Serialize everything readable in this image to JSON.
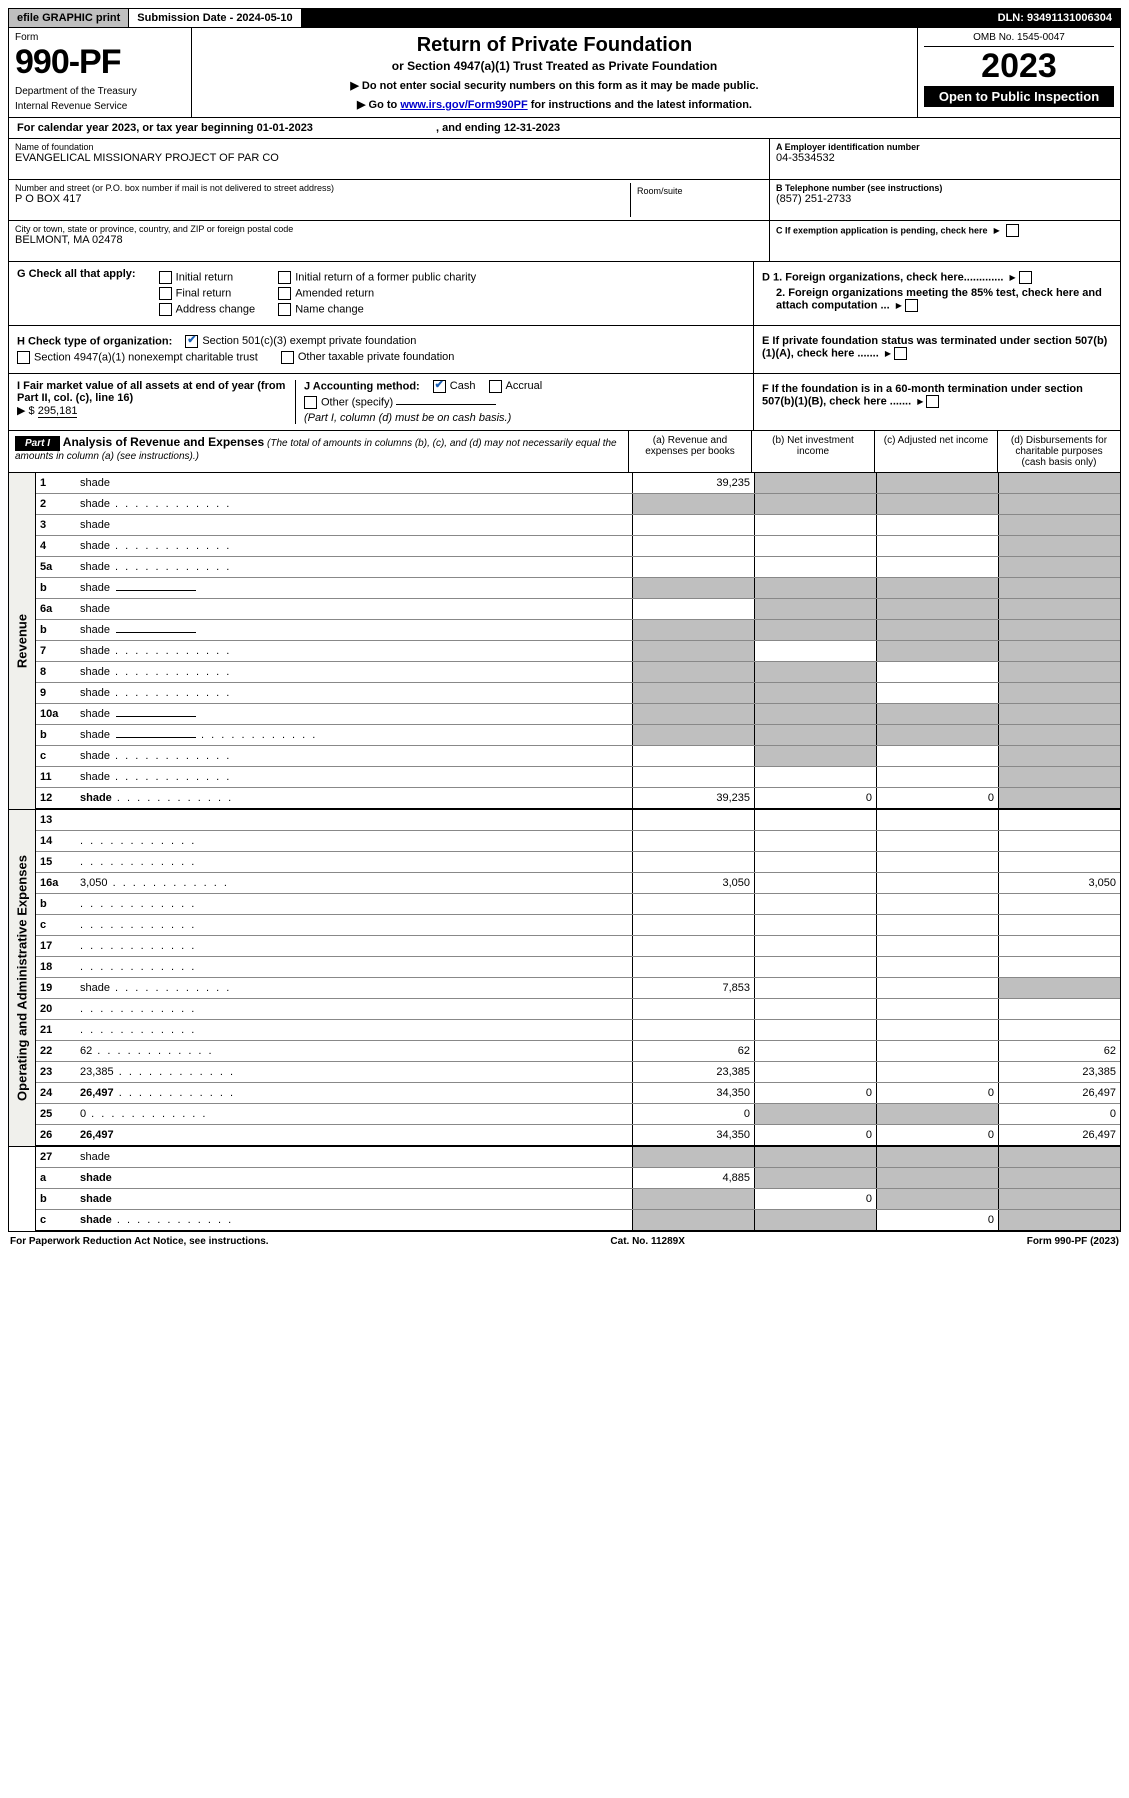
{
  "topbar": {
    "efile": "efile GRAPHIC print",
    "subdate": "Submission Date - 2024-05-10",
    "dln": "DLN: 93491131006304"
  },
  "form": {
    "formword": "Form",
    "number": "990-PF",
    "dept": "Department of the Treasury",
    "irs": "Internal Revenue Service",
    "title": "Return of Private Foundation",
    "subtitle": "or Section 4947(a)(1) Trust Treated as Private Foundation",
    "note1": "▶ Do not enter social security numbers on this form as it may be made public.",
    "note2_prefix": "▶ Go to ",
    "note2_link": "www.irs.gov/Form990PF",
    "note2_suffix": " for instructions and the latest information.",
    "omb": "OMB No. 1545-0047",
    "year": "2023",
    "open": "Open to Public Inspection"
  },
  "calyear": {
    "prefix": "For calendar year 2023, or tax year beginning ",
    "begin": "01-01-2023",
    "mid": " , and ending ",
    "end": "12-31-2023"
  },
  "id": {
    "name_lbl": "Name of foundation",
    "name": "EVANGELICAL MISSIONARY PROJECT OF PAR CO",
    "addr_lbl": "Number and street (or P.O. box number if mail is not delivered to street address)",
    "addr": "P O BOX 417",
    "room_lbl": "Room/suite",
    "room": "",
    "city_lbl": "City or town, state or province, country, and ZIP or foreign postal code",
    "city": "BELMONT, MA  02478",
    "ein_lbl": "A Employer identification number",
    "ein": "04-3534532",
    "tel_lbl": "B Telephone number (see instructions)",
    "tel": "(857) 251-2733",
    "c_lbl": "C If exemption application is pending, check here",
    "d1_lbl": "D 1. Foreign organizations, check here.............",
    "d2_lbl": "2. Foreign organizations meeting the 85% test, check here and attach computation ...",
    "e_lbl": "E If private foundation status was terminated under section 507(b)(1)(A), check here .......",
    "f_lbl": "F If the foundation is in a 60-month termination under section 507(b)(1)(B), check here ......."
  },
  "g": {
    "label": "G Check all that apply:",
    "opts": [
      "Initial return",
      "Final return",
      "Address change",
      "Initial return of a former public charity",
      "Amended return",
      "Name change"
    ]
  },
  "h": {
    "label": "H Check type of organization:",
    "o1": "Section 501(c)(3) exempt private foundation",
    "o2": "Section 4947(a)(1) nonexempt charitable trust",
    "o3": "Other taxable private foundation"
  },
  "i": {
    "label": "I Fair market value of all assets at end of year (from Part II, col. (c), line 16)",
    "val_prefix": "▶ $ ",
    "val": "295,181"
  },
  "j": {
    "label": "J Accounting method:",
    "cash": "Cash",
    "accrual": "Accrual",
    "other": "Other (specify)",
    "note": "(Part I, column (d) must be on cash basis.)"
  },
  "part1": {
    "label": "Part I",
    "title": "Analysis of Revenue and Expenses",
    "sub": " (The total of amounts in columns (b), (c), and (d) may not necessarily equal the amounts in column (a) (see instructions).)",
    "cols": [
      "(a) Revenue and expenses per books",
      "(b) Net investment income",
      "(c) Adjusted net income",
      "(d) Disbursements for charitable purposes (cash basis only)"
    ]
  },
  "sideRev": "Revenue",
  "sideOp": "Operating and Administrative Expenses",
  "rows": [
    {
      "n": "1",
      "d": "shade",
      "a": "39,235",
      "b": "shade",
      "c": "shade"
    },
    {
      "n": "2",
      "d": "shade",
      "a": "shade",
      "b": "shade",
      "c": "shade",
      "dots": true
    },
    {
      "n": "3",
      "d": "shade",
      "a": "",
      "b": "",
      "c": ""
    },
    {
      "n": "4",
      "d": "shade",
      "a": "",
      "b": "",
      "c": "",
      "dots": true
    },
    {
      "n": "5a",
      "d": "shade",
      "a": "",
      "b": "",
      "c": "",
      "dots": true
    },
    {
      "n": "b",
      "d": "shade",
      "a": "shade",
      "b": "shade",
      "c": "shade",
      "inner": true
    },
    {
      "n": "6a",
      "d": "shade",
      "a": "",
      "b": "shade",
      "c": "shade"
    },
    {
      "n": "b",
      "d": "shade",
      "a": "shade",
      "b": "shade",
      "c": "shade",
      "inner": true
    },
    {
      "n": "7",
      "d": "shade",
      "a": "shade",
      "b": "",
      "c": "shade",
      "dots": true
    },
    {
      "n": "8",
      "d": "shade",
      "a": "shade",
      "b": "shade",
      "c": "",
      "dots": true
    },
    {
      "n": "9",
      "d": "shade",
      "a": "shade",
      "b": "shade",
      "c": "",
      "dots": true
    },
    {
      "n": "10a",
      "d": "shade",
      "a": "shade",
      "b": "shade",
      "c": "shade",
      "inner": true
    },
    {
      "n": "b",
      "d": "shade",
      "a": "shade",
      "b": "shade",
      "c": "shade",
      "inner": true,
      "dots": true
    },
    {
      "n": "c",
      "d": "shade",
      "a": "",
      "b": "shade",
      "c": "",
      "dots": true
    },
    {
      "n": "11",
      "d": "shade",
      "a": "",
      "b": "",
      "c": "",
      "dots": true
    },
    {
      "n": "12",
      "d": "shade",
      "a": "39,235",
      "b": "0",
      "c": "0",
      "bold": true,
      "dots": true
    }
  ],
  "oprows": [
    {
      "n": "13",
      "d": "",
      "a": "",
      "b": "",
      "c": ""
    },
    {
      "n": "14",
      "d": "",
      "a": "",
      "b": "",
      "c": "",
      "dots": true
    },
    {
      "n": "15",
      "d": "",
      "a": "",
      "b": "",
      "c": "",
      "dots": true
    },
    {
      "n": "16a",
      "d": "3,050",
      "a": "3,050",
      "b": "",
      "c": "",
      "dots": true
    },
    {
      "n": "b",
      "d": "",
      "a": "",
      "b": "",
      "c": "",
      "dots": true
    },
    {
      "n": "c",
      "d": "",
      "a": "",
      "b": "",
      "c": "",
      "dots": true
    },
    {
      "n": "17",
      "d": "",
      "a": "",
      "b": "",
      "c": "",
      "dots": true
    },
    {
      "n": "18",
      "d": "",
      "a": "",
      "b": "",
      "c": "",
      "dots": true
    },
    {
      "n": "19",
      "d": "shade",
      "a": "7,853",
      "b": "",
      "c": "",
      "dots": true
    },
    {
      "n": "20",
      "d": "",
      "a": "",
      "b": "",
      "c": "",
      "dots": true
    },
    {
      "n": "21",
      "d": "",
      "a": "",
      "b": "",
      "c": "",
      "dots": true
    },
    {
      "n": "22",
      "d": "62",
      "a": "62",
      "b": "",
      "c": "",
      "dots": true
    },
    {
      "n": "23",
      "d": "23,385",
      "a": "23,385",
      "b": "",
      "c": "",
      "dots": true
    },
    {
      "n": "24",
      "d": "26,497",
      "a": "34,350",
      "b": "0",
      "c": "0",
      "bold": true,
      "dots": true
    },
    {
      "n": "25",
      "d": "0",
      "a": "0",
      "b": "shade",
      "c": "shade",
      "dots": true
    },
    {
      "n": "26",
      "d": "26,497",
      "a": "34,350",
      "b": "0",
      "c": "0",
      "bold": true
    }
  ],
  "bottomrows": [
    {
      "n": "27",
      "d": "shade",
      "a": "shade",
      "b": "shade",
      "c": "shade"
    },
    {
      "n": "a",
      "d": "shade",
      "a": "4,885",
      "b": "shade",
      "c": "shade",
      "bold": true
    },
    {
      "n": "b",
      "d": "shade",
      "a": "shade",
      "b": "0",
      "c": "shade",
      "bold": true
    },
    {
      "n": "c",
      "d": "shade",
      "a": "shade",
      "b": "shade",
      "c": "0",
      "bold": true,
      "dots": true
    }
  ],
  "footer": {
    "left": "For Paperwork Reduction Act Notice, see instructions.",
    "mid": "Cat. No. 11289X",
    "right": "Form 990-PF (2023)"
  }
}
